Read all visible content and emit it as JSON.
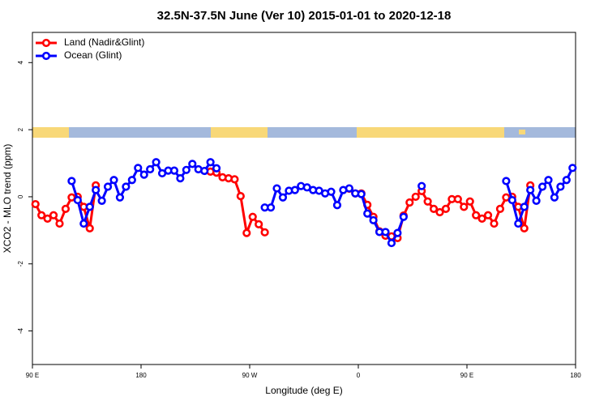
{
  "chart_data": {
    "type": "line",
    "title": "32.5N-37.5N June (Ver 10)   2015-01-01 to 2020-12-18",
    "x_label": "Longitude (deg E)",
    "y_label": "XCO2 - MLO trend (ppm)",
    "x": [
      92.5,
      97.5,
      102.5,
      107.5,
      112.5,
      117.5,
      122.5,
      127.5,
      132.5,
      137.5,
      142.5,
      147.5,
      152.5,
      157.5,
      162.5,
      167.5,
      172.5,
      177.5,
      182.5,
      187.5,
      192.5,
      197.5,
      202.5,
      207.5,
      212.5,
      217.5,
      222.5,
      227.5,
      232.5,
      237.5,
      242.5,
      247.5,
      252.5,
      257.5,
      262.5,
      267.5,
      272.5,
      277.5,
      282.5,
      287.5,
      292.5,
      297.5,
      302.5,
      307.5,
      312.5,
      317.5,
      322.5,
      327.5,
      332.5,
      337.5,
      342.5,
      347.5,
      352.5,
      357.5,
      362.5,
      367.5,
      372.5,
      377.5,
      382.5,
      387.5,
      392.5,
      397.5,
      402.5,
      407.5,
      412.5,
      417.5,
      422.5,
      427.5,
      432.5,
      437.5,
      442.5,
      447.5,
      452.5,
      457.5,
      462.5,
      467.5,
      472.5,
      477.5,
      482.5,
      487.5,
      492.5,
      497.5,
      502.5,
      507.5,
      512.5,
      517.5,
      522.5,
      527.5,
      532.5,
      537.5
    ],
    "series": [
      {
        "name": "Land (Nadir&Glint)",
        "color": "#ff0000",
        "values": [
          -0.22,
          -0.55,
          -0.65,
          -0.55,
          -0.8,
          -0.36,
          -0.02,
          0,
          -0.3,
          -0.94,
          0.34,
          null,
          null,
          null,
          null,
          null,
          null,
          null,
          null,
          null,
          null,
          null,
          null,
          null,
          null,
          null,
          null,
          null,
          null,
          0.75,
          0.72,
          0.58,
          0.55,
          0.52,
          0.02,
          -1.08,
          -0.6,
          -0.82,
          -1.06,
          null,
          null,
          null,
          null,
          null,
          null,
          null,
          null,
          null,
          null,
          null,
          null,
          null,
          0.24,
          0.1,
          0.1,
          -0.24,
          -0.6,
          -1.03,
          -1.16,
          -1.18,
          -1.23,
          -0.56,
          -0.17,
          0,
          0.17,
          -0.14,
          -0.36,
          -0.46,
          -0.36,
          -0.07,
          -0.07,
          -0.3,
          -0.14,
          -0.55,
          -0.65,
          -0.55,
          -0.8,
          -0.36,
          -0.02,
          0,
          -0.3,
          -0.94,
          0.34,
          null,
          null,
          null,
          null,
          null,
          null,
          null
        ]
      },
      {
        "name": "Ocean (Glint)",
        "color": "#0000ff",
        "values": [
          null,
          null,
          null,
          null,
          null,
          null,
          0.47,
          -0.1,
          -0.8,
          -0.3,
          0.2,
          -0.12,
          0.3,
          0.5,
          -0.02,
          0.3,
          0.5,
          0.86,
          0.66,
          0.82,
          1.03,
          0.7,
          0.78,
          0.78,
          0.55,
          0.8,
          0.98,
          0.82,
          0.77,
          1.03,
          0.85,
          null,
          null,
          null,
          null,
          null,
          null,
          null,
          -0.32,
          -0.32,
          0.25,
          -0.02,
          0.18,
          0.2,
          0.32,
          0.28,
          0.2,
          0.18,
          0.1,
          0.15,
          -0.25,
          0.2,
          0.25,
          0.1,
          0.08,
          -0.5,
          -0.7,
          -1.05,
          -1.05,
          -1.38,
          -1.08,
          -0.6,
          null,
          null,
          0.32,
          null,
          null,
          null,
          null,
          null,
          null,
          null,
          null,
          null,
          null,
          null,
          null,
          null,
          0.47,
          -0.1,
          -0.8,
          -0.3,
          0.2,
          -0.12,
          0.3,
          0.5,
          -0.02,
          0.3,
          0.5,
          0.86
        ]
      }
    ],
    "xlim": [
      90,
      540
    ],
    "xticks": [
      {
        "value": 90,
        "label": "90 E"
      },
      {
        "value": 180,
        "label": "180"
      },
      {
        "value": 270,
        "label": "90 W"
      },
      {
        "value": 360,
        "label": "0"
      },
      {
        "value": 450,
        "label": "90 E"
      },
      {
        "value": 540,
        "label": "180"
      }
    ],
    "ylim": [
      -5,
      4.9
    ],
    "yticks": [
      -4,
      -2,
      0,
      2,
      4
    ],
    "legend": "top-left",
    "grid": false
  }
}
